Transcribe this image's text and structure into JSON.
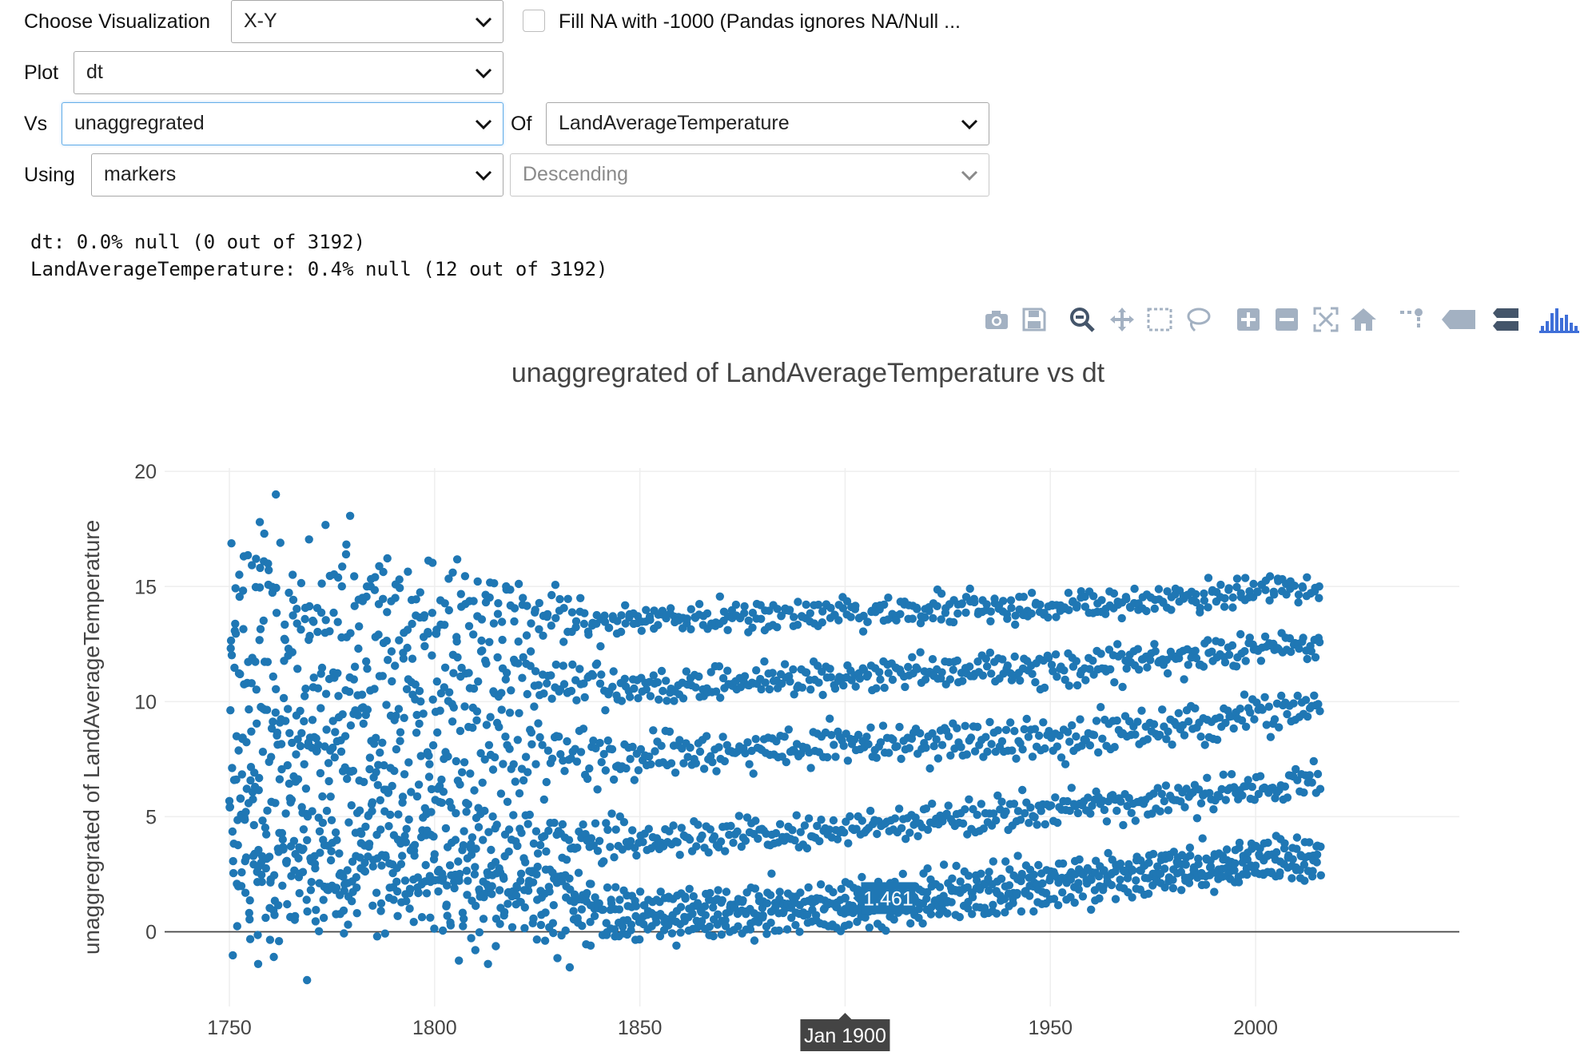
{
  "controls": {
    "viz_label": "Choose Visualization",
    "viz_value": "X-Y",
    "fillna_label": "Fill NA with -1000 (Pandas ignores NA/Null ...",
    "plot_label": "Plot",
    "plot_value": "dt",
    "vs_label": "Vs",
    "vs_value": "unaggregrated",
    "of_label": "Of",
    "of_value": "LandAverageTemperature",
    "using_label": "Using",
    "using_value": "markers",
    "order_value": "Descending"
  },
  "null_report": [
    "dt: 0.0% null (0 out of 3192)",
    "LandAverageTemperature: 0.4% null (12 out of 3192)"
  ],
  "toolbar_icons": [
    "camera-icon",
    "save-icon",
    "zoom-icon",
    "pan-icon",
    "box-select-icon",
    "lasso-icon",
    "zoom-in-icon",
    "zoom-out-icon",
    "autoscale-icon",
    "reset-axes-icon",
    "spike-lines-icon",
    "hover-closest-icon",
    "hover-compare-icon",
    "plotly-logo-icon"
  ],
  "colors": {
    "marker": "#1f77b4",
    "focus_border": "#66afe9",
    "hover_label_bg": "#1f77b4",
    "hover_x_bg": "#444444"
  },
  "chart_data": {
    "type": "scatter",
    "mode": "markers",
    "title": "unaggregrated of LandAverageTemperature vs dt",
    "xlabel": "",
    "ylabel": "unaggregrated of LandAverageTemperature",
    "x_ticks": [
      "1750",
      "1800",
      "1850",
      "1900",
      "1950",
      "2000"
    ],
    "y_ticks": [
      "0",
      "5",
      "10",
      "15",
      "20"
    ],
    "xlim": [
      1750,
      2015.95
    ],
    "ylim": [
      -2.1,
      19.0
    ],
    "grid": true,
    "series": [
      {
        "x_range": [
          "1750-01",
          "2015-12"
        ],
        "frequency": "monthly",
        "count": 3192,
        "null_count": 12,
        "values_by_month_approx": {
          "Jan": {
            "1750": 3.0,
            "1800": 2.0,
            "1850": 0.8,
            "1900": 1.2,
            "1950": 2.2,
            "2015": 3.7
          },
          "Feb": {
            "1750": 3.5,
            "1800": 3.2,
            "1850": 1.3,
            "1900": 1.7,
            "1950": 2.8,
            "2015": 3.6
          },
          "Mar": {
            "1750": 6.0,
            "1800": 5.0,
            "1850": 4.2,
            "1900": 4.7,
            "1950": 5.6,
            "2015": 6.8
          },
          "Apr": {
            "1750": 8.5,
            "1800": 8.2,
            "1850": 7.8,
            "1900": 8.5,
            "1950": 8.6,
            "2015": 10.0
          },
          "May": {
            "1750": 11.5,
            "1800": 11.1,
            "1850": 10.8,
            "1900": 11.4,
            "1950": 11.6,
            "2015": 12.8
          },
          "Jun": {
            "1750": 14.5,
            "1800": 13.9,
            "1850": 13.4,
            "1900": 13.7,
            "1950": 14.0,
            "2015": 14.8
          }
        },
        "outliers": [
          {
            "x": "1761-05",
            "y": 19.0
          },
          {
            "x": "1757-06",
            "y": 17.8
          },
          {
            "x": "1768-12",
            "y": -2.1
          },
          {
            "x": "1757-01",
            "y": -1.4
          },
          {
            "x": "1813-01",
            "y": -1.4
          },
          {
            "x": "1838-01",
            "y": -0.6
          },
          {
            "x": "1893-01",
            "y": 0.5
          }
        ]
      }
    ],
    "hover_point": {
      "x_label": "Jan 1900",
      "y_label": "1.461",
      "x": "1900-01",
      "y": 1.461
    }
  }
}
